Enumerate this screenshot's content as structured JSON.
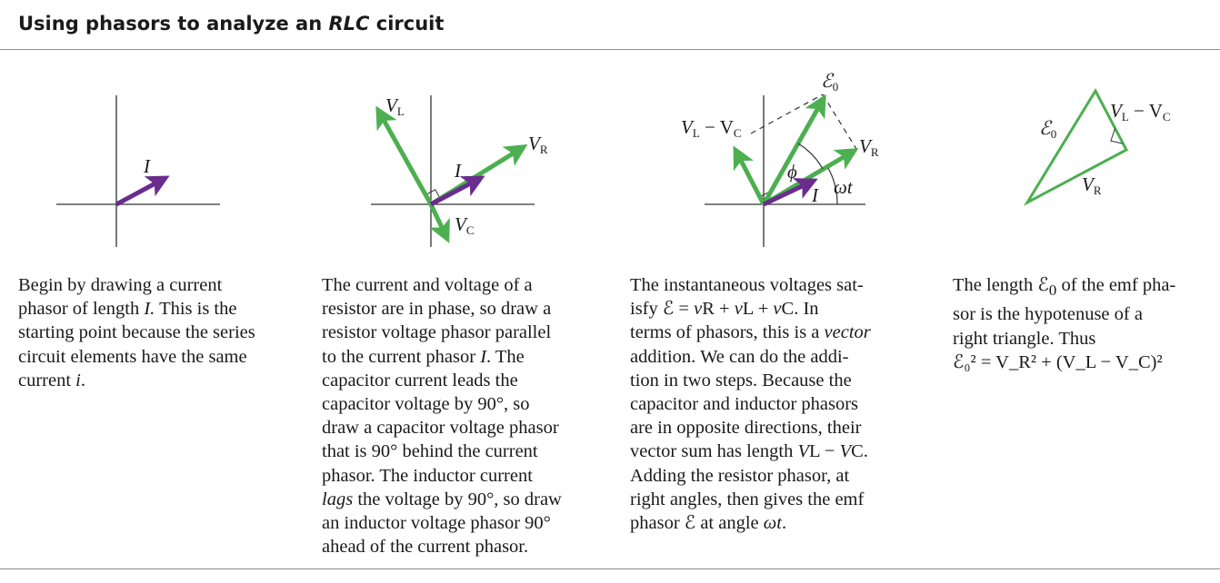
{
  "title": {
    "text": "Using phasors to analyze an ",
    "italic": "RLC",
    "suffix": " circuit"
  },
  "colors": {
    "current_phasor": "#6a2c8e",
    "voltage_phasor": "#4caf50",
    "axis": "#333333",
    "rule": "#8c8c8c"
  },
  "panel1": {
    "labels": {
      "current": "I"
    },
    "caption": {
      "part1": "Begin by drawing a current\nphasor of length ",
      "italic1": "I.",
      "part2": " This is the\nstarting point because the series\ncircuit elements have the same\ncurrent ",
      "italic2": "i",
      "part3": "."
    }
  },
  "panel2": {
    "labels": {
      "inductor": "V",
      "inductor_sub": "L",
      "resistor": "V",
      "resistor_sub": "R",
      "capacitor": "V",
      "capacitor_sub": "C",
      "current": "I"
    },
    "caption": {
      "part1": "The current and voltage of a\nresistor are in phase, so draw a\nresistor voltage phasor parallel\nto the current phasor ",
      "italic1": "I",
      "part2": ". The\ncapacitor current leads the\ncapacitor voltage by 90°, so\ndraw a capacitor voltage phasor\nthat is 90° behind the current\nphasor. The inductor current\n",
      "italic2": "lags",
      "part3": " the voltage by 90°, so draw\nan inductor voltage phasor 90°\nahead of the current phasor."
    }
  },
  "panel3": {
    "labels": {
      "emf": "ℰ",
      "emf_sub": "0",
      "diff": "V",
      "diff_sub1": "L",
      "diff_minus": " − V",
      "diff_sub2": "C",
      "resistor": "V",
      "resistor_sub": "R",
      "phase": "ϕ",
      "current": "I",
      "angle": "ωt"
    },
    "caption": {
      "part1": "The instantaneous voltages sat-\nisfy ℰ = ",
      "italic1": "v",
      "part2": "R + ",
      "italic2": "v",
      "part3": "L + ",
      "italic3": "v",
      "part4": "C. In\nterms of phasors, this is a ",
      "italic4": "vector",
      "part5": "\naddition. We can do the addi-\ntion in two steps. Because the\ncapacitor and inductor phasors\nare in opposite directions, their\nvector sum has length ",
      "italic5": "V",
      "part6": "L − ",
      "italic6": "V",
      "part7": "C.\nAdding the resistor phasor, at\nright angles, then gives the emf\nphasor ℰ at angle ",
      "italic7": "ωt",
      "part8": "."
    }
  },
  "panel4": {
    "labels": {
      "emf": "ℰ",
      "emf_sub": "0",
      "diff": "V",
      "diff_sub1": "L",
      "diff_minus": " − V",
      "diff_sub2": "C",
      "resistor": "V",
      "resistor_sub": "R"
    },
    "caption": {
      "part1": "The length ℰ",
      "sub1": "0",
      "part2": " of the emf pha-\nsor is the hypotenuse of a\nright triangle. Thus",
      "equation": "ℰ₀² = V_R² + (V_L − V_C)²"
    }
  }
}
